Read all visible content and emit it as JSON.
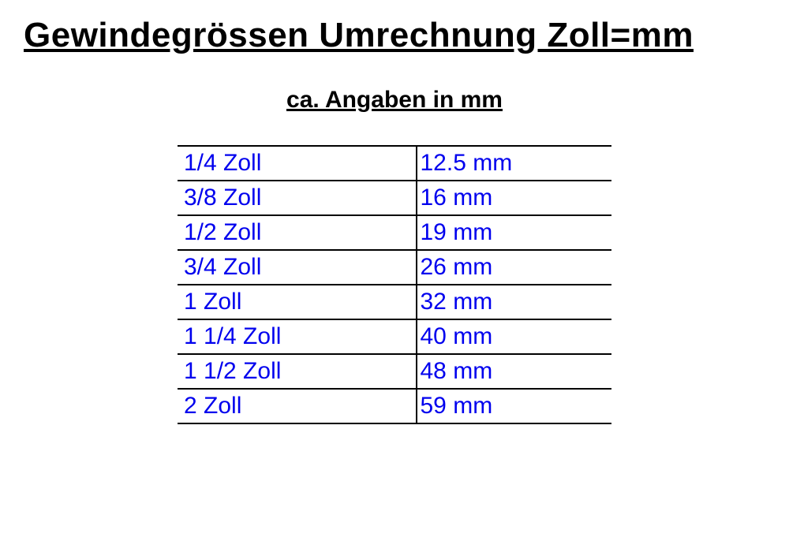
{
  "title": "Gewindegrössen Umrechnung Zoll=mm",
  "subtitle": "ca. Angaben in mm",
  "table": {
    "rows": [
      {
        "zoll": "1/4 Zoll",
        "mm": "12.5 mm"
      },
      {
        "zoll": "3/8 Zoll",
        "mm": "16 mm"
      },
      {
        "zoll": "1/2 Zoll",
        "mm": "19 mm"
      },
      {
        "zoll": "3/4 Zoll",
        "mm": "26 mm"
      },
      {
        "zoll": "1 Zoll",
        "mm": "32 mm"
      },
      {
        "zoll": "1 1/4 Zoll",
        "mm": "40 mm"
      },
      {
        "zoll": "1 1/2 Zoll",
        "mm": "48 mm"
      },
      {
        "zoll": "2 Zoll",
        "mm": "59 mm"
      }
    ],
    "text_color": "#0000ee",
    "border_color": "#000000",
    "font_size": 30,
    "col_widths": [
      "55%",
      "45%"
    ]
  },
  "styles": {
    "background_color": "#ffffff",
    "title_color": "#000000",
    "title_fontsize": 44,
    "subtitle_fontsize": 30
  }
}
